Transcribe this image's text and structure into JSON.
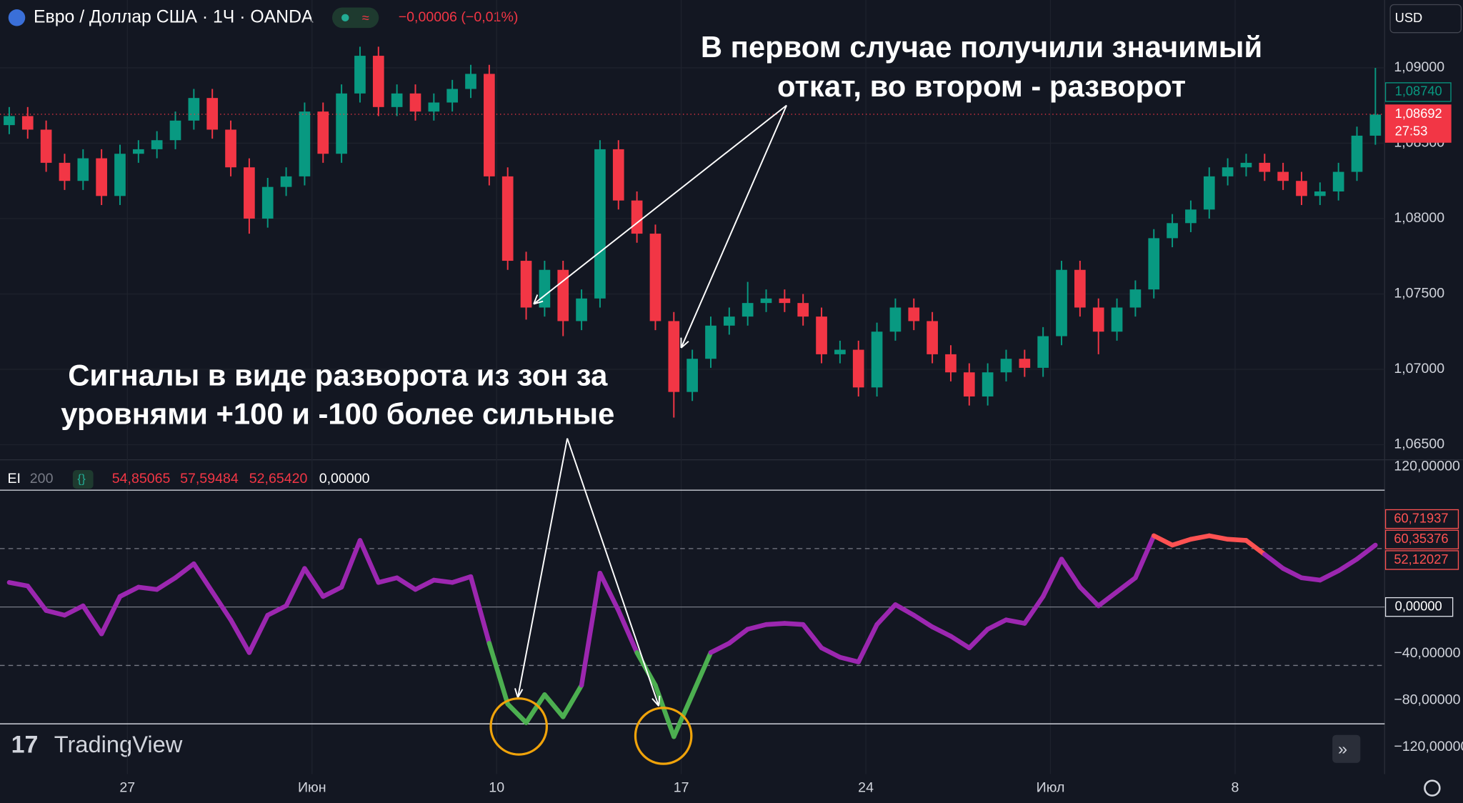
{
  "header": {
    "symbol": "Евро / Доллар США · 1Ч · OANDA",
    "change": "−0,00006 (−0,01%)",
    "currency": "USD"
  },
  "indicator_header": {
    "name": "EI",
    "length": "200",
    "values": [
      "54,85065",
      "57,59484",
      "52,65420"
    ],
    "last": "0,00000"
  },
  "brand": "TradingView",
  "annotations": [
    {
      "lines": [
        "В первом случае получили значимый",
        "откат, во втором - разворот"
      ]
    },
    {
      "lines": [
        "Сигналы в виде разворота из зон за",
        "уровнями +100 и -100 более сильные"
      ]
    }
  ],
  "chart_data": [
    {
      "type": "candlestick",
      "up_color": "#089981",
      "down_color": "#f23645",
      "xlim": [
        -0.5,
        74.5
      ],
      "xticks": [
        {
          "value": 6.4,
          "label": "27"
        },
        {
          "value": 16.4,
          "label": "Июн"
        },
        {
          "value": 26.4,
          "label": "10"
        },
        {
          "value": 36.4,
          "label": "17"
        },
        {
          "value": 46.4,
          "label": "24"
        },
        {
          "value": 56.4,
          "label": "Июл"
        },
        {
          "value": 66.4,
          "label": "8"
        }
      ],
      "ylim": [
        1.064,
        1.0945
      ],
      "yticks": [
        {
          "value": 1.065,
          "label": "1,06500"
        },
        {
          "value": 1.07,
          "label": "1,07000"
        },
        {
          "value": 1.075,
          "label": "1,07500"
        },
        {
          "value": 1.08,
          "label": "1,08000"
        },
        {
          "value": 1.085,
          "label": "1,08500"
        },
        {
          "value": 1.09,
          "label": "1,09000"
        }
      ],
      "open": [
        1.0862,
        1.0868,
        1.0859,
        1.0837,
        1.0825,
        1.084,
        1.0815,
        1.0843,
        1.0846,
        1.0852,
        1.0865,
        1.088,
        1.0859,
        1.0834,
        1.08,
        1.0821,
        1.0828,
        1.0871,
        1.0843,
        1.0883,
        1.0908,
        1.0874,
        1.0883,
        1.0871,
        1.0877,
        1.0886,
        1.0896,
        1.0828,
        1.0772,
        1.0741,
        1.0766,
        1.0732,
        1.0747,
        1.0846,
        1.0812,
        1.079,
        1.0732,
        1.0685,
        1.0707,
        1.0729,
        1.0735,
        1.0744,
        1.0747,
        1.0744,
        1.0735,
        1.071,
        1.0713,
        1.0688,
        1.0725,
        1.0741,
        1.0732,
        1.071,
        1.0698,
        1.0682,
        1.0698,
        1.0707,
        1.0701,
        1.0722,
        1.0766,
        1.0741,
        1.0725,
        1.0741,
        1.0753,
        1.0787,
        1.0797,
        1.0806,
        1.0828,
        1.0834,
        1.0837,
        1.0831,
        1.0825,
        1.0815,
        1.0818,
        1.0831,
        1.0855
      ],
      "high": [
        1.0874,
        1.0874,
        1.0865,
        1.0843,
        1.0846,
        1.0846,
        1.0849,
        1.0852,
        1.0858,
        1.0871,
        1.0886,
        1.0886,
        1.0865,
        1.084,
        1.0827,
        1.0834,
        1.0877,
        1.0877,
        1.0889,
        1.0914,
        1.0914,
        1.0889,
        1.0889,
        1.0883,
        1.0892,
        1.0902,
        1.0902,
        1.0834,
        1.0778,
        1.0772,
        1.0772,
        1.0753,
        1.0852,
        1.0852,
        1.0818,
        1.0796,
        1.0738,
        1.0713,
        1.0735,
        1.0741,
        1.0758,
        1.0753,
        1.0753,
        1.075,
        1.0741,
        1.0719,
        1.0719,
        1.0731,
        1.0747,
        1.0747,
        1.0738,
        1.0716,
        1.0704,
        1.0704,
        1.0713,
        1.0713,
        1.0728,
        1.0772,
        1.0772,
        1.0747,
        1.0747,
        1.0759,
        1.0793,
        1.0803,
        1.0812,
        1.0834,
        1.084,
        1.0843,
        1.0843,
        1.0837,
        1.0831,
        1.0824,
        1.0837,
        1.0861,
        1.09
      ],
      "low": [
        1.0856,
        1.0853,
        1.0831,
        1.0819,
        1.0819,
        1.0809,
        1.0809,
        1.0837,
        1.084,
        1.0846,
        1.0859,
        1.0853,
        1.0828,
        1.079,
        1.0794,
        1.0815,
        1.0822,
        1.0837,
        1.0837,
        1.0877,
        1.0868,
        1.0868,
        1.0865,
        1.0865,
        1.0871,
        1.088,
        1.0822,
        1.0766,
        1.0733,
        1.0735,
        1.0722,
        1.0726,
        1.0741,
        1.0806,
        1.0784,
        1.0726,
        1.0668,
        1.0679,
        1.0701,
        1.0723,
        1.0729,
        1.0738,
        1.0738,
        1.0729,
        1.0704,
        1.0704,
        1.0682,
        1.0682,
        1.0719,
        1.0726,
        1.0704,
        1.0692,
        1.0676,
        1.0676,
        1.0692,
        1.0695,
        1.0695,
        1.0716,
        1.0735,
        1.071,
        1.0719,
        1.0735,
        1.0747,
        1.0781,
        1.0791,
        1.08,
        1.0822,
        1.0828,
        1.0825,
        1.0819,
        1.0809,
        1.0809,
        1.0812,
        1.0825,
        1.0849
      ],
      "close": [
        1.0868,
        1.0859,
        1.0837,
        1.0825,
        1.084,
        1.0815,
        1.0843,
        1.0846,
        1.0852,
        1.0865,
        1.088,
        1.0859,
        1.0834,
        1.08,
        1.0821,
        1.0828,
        1.0871,
        1.0843,
        1.0883,
        1.0908,
        1.0874,
        1.0883,
        1.0871,
        1.0877,
        1.0886,
        1.0896,
        1.0828,
        1.0772,
        1.0741,
        1.0766,
        1.0732,
        1.0747,
        1.0846,
        1.0812,
        1.079,
        1.0732,
        1.0685,
        1.0707,
        1.0729,
        1.0735,
        1.0744,
        1.0747,
        1.0744,
        1.0735,
        1.071,
        1.0713,
        1.0688,
        1.0725,
        1.0741,
        1.0732,
        1.071,
        1.0698,
        1.0682,
        1.0698,
        1.0707,
        1.0701,
        1.0722,
        1.0766,
        1.0741,
        1.0725,
        1.0741,
        1.0753,
        1.0787,
        1.0797,
        1.0806,
        1.0828,
        1.0834,
        1.0837,
        1.0831,
        1.0825,
        1.0815,
        1.0818,
        1.0831,
        1.0855,
        1.0869
      ],
      "price_markers": [
        {
          "value": 1.0874,
          "label": "1,08740",
          "color": "#089981"
        },
        {
          "value": 1.08692,
          "label": "1,08692",
          "color": "#f23645",
          "countdown": "27:53"
        }
      ]
    },
    {
      "type": "line",
      "colors": {
        "normal": "#9c27b0",
        "upper": "#ff5252",
        "lower": "#4caf50"
      },
      "xlim": [
        -0.5,
        74.5
      ],
      "ylim": [
        -143,
        126
      ],
      "yticks": [
        {
          "value": 120,
          "label": "120,00000"
        },
        {
          "value": -40,
          "label": "−40,00000"
        },
        {
          "value": -80,
          "label": "−80,00000"
        },
        {
          "value": -120,
          "label": "−120,00000"
        }
      ],
      "levels": [
        {
          "value": 100,
          "style": "solid"
        },
        {
          "value": 50,
          "style": "dashed",
          "zone": "upper"
        },
        {
          "value": 0,
          "style": "zero",
          "label": "0,00000"
        },
        {
          "value": -50,
          "style": "dashed",
          "zone": "lower"
        },
        {
          "value": -100,
          "style": "solid"
        }
      ],
      "values": [
        21,
        18,
        -3,
        -7,
        1,
        -23,
        9,
        17,
        15,
        25,
        37,
        13,
        -11,
        -39,
        -7,
        1,
        33,
        9,
        17,
        57,
        21,
        25,
        15,
        23,
        21,
        26,
        -31,
        -83,
        -99,
        -75,
        -94,
        -67,
        29,
        -3,
        -39,
        -67,
        -111,
        -75,
        -39,
        -31,
        -19,
        -15,
        -14,
        -15,
        -35,
        -43,
        -47,
        -15,
        2,
        -7,
        -17,
        -25,
        -35,
        -19,
        -11,
        -14,
        9,
        41,
        17,
        1,
        13,
        25,
        61,
        53,
        58,
        61,
        58,
        57,
        45,
        33,
        25,
        23,
        31,
        41,
        53
      ],
      "value_boxes": [
        {
          "value": 60.71937,
          "label": "60,71937"
        },
        {
          "value": 60.35376,
          "label": "60,35376"
        },
        {
          "value": 52.12027,
          "label": "52,12027"
        }
      ]
    }
  ]
}
